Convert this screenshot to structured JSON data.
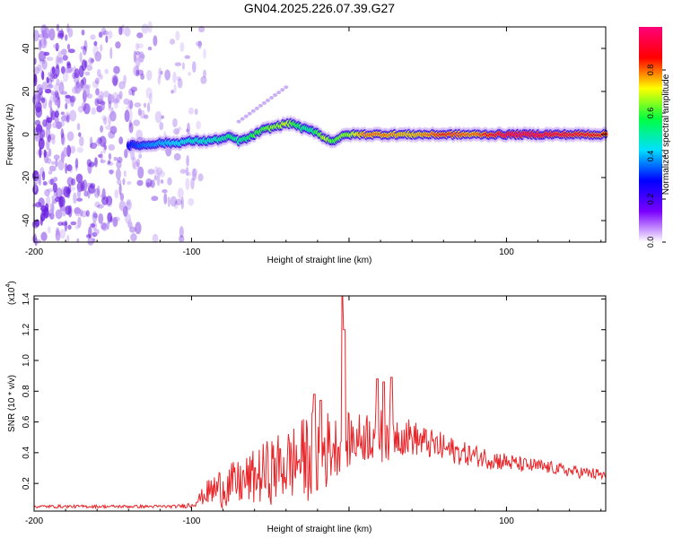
{
  "title": "GN04.2025.226.07.39.G27",
  "colors": {
    "snr_line": "#e8262a",
    "spectro_base": "#6a1fe0"
  },
  "chart_data": [
    {
      "type": "heatmap",
      "xlabel": "Height of straight line (km)",
      "ylabel": "Frequency (Hz)",
      "xlim": [
        -200,
        163
      ],
      "ylim": [
        -50,
        50
      ],
      "x_ticks": [
        -200,
        -100,
        0,
        100
      ],
      "x_tick_labels": [
        "-200",
        "-100",
        "",
        "100"
      ],
      "y_ticks": [
        -40,
        -20,
        0,
        20,
        40
      ],
      "y_tick_labels": [
        "-40",
        "-20",
        "0",
        "20",
        "40"
      ],
      "colorbar": {
        "label": "Normalized spectral amplitude",
        "range": [
          0,
          1
        ],
        "ticks": [
          0,
          0.2,
          0.4,
          0.6,
          0.8
        ],
        "tick_labels": [
          "0.0",
          "0.2",
          "0.4",
          "0.6",
          "0.8"
        ],
        "colormap": [
          "#ffffff",
          "#7a00ff",
          "#0000ff",
          "#00e0ff",
          "#00ff40",
          "#ffff00",
          "#ff0000",
          "#ff007a"
        ]
      },
      "ridge": {
        "x": [
          -140,
          -130,
          -120,
          -110,
          -100,
          -90,
          -80,
          -75,
          -70,
          -65,
          -60,
          -55,
          -50,
          -45,
          -40,
          -35,
          -30,
          -25,
          -20,
          -15,
          -10,
          -5,
          0,
          10,
          20,
          40,
          60,
          80,
          100,
          120,
          140,
          163
        ],
        "freq": [
          -5,
          -5,
          -4,
          -4,
          -3,
          -3,
          -2,
          -1,
          -3,
          -2,
          0,
          2,
          3,
          4,
          5,
          5,
          3,
          2,
          1,
          -2,
          -3,
          -1,
          0,
          0,
          0,
          0,
          0,
          0,
          0,
          0,
          0,
          0
        ],
        "amplitude": [
          0.2,
          0.3,
          0.35,
          0.4,
          0.45,
          0.45,
          0.5,
          0.55,
          0.5,
          0.55,
          0.6,
          0.6,
          0.65,
          0.65,
          0.7,
          0.6,
          0.55,
          0.5,
          0.6,
          0.7,
          0.6,
          0.65,
          0.65,
          0.8,
          0.8,
          0.75,
          0.85,
          0.8,
          0.95,
          0.95,
          0.9,
          0.85
        ]
      },
      "faint_track": {
        "x": [
          -70,
          -40
        ],
        "freq": [
          6,
          22
        ]
      },
      "noise_region_x": [
        -200,
        -110
      ]
    },
    {
      "type": "line",
      "xlabel": "Height of straight line (km)",
      "ylabel": "SNR (10 * v/v)",
      "y_multiplier": "(x10",
      "y_multiplier_exp": "4",
      "y_multiplier_close": ")",
      "xlim": [
        -200,
        163
      ],
      "ylim": [
        0.02,
        1.42
      ],
      "x_ticks": [
        -200,
        -100,
        0,
        100
      ],
      "x_tick_labels": [
        "-200",
        "-100",
        "",
        "100"
      ],
      "y_ticks": [
        0.2,
        0.4,
        0.6,
        0.8,
        1.0,
        1.2,
        1.4
      ],
      "y_tick_labels": [
        "0.2",
        "0.4",
        "0.6",
        "0.8",
        "1.0",
        "1.2",
        "1.4"
      ],
      "envelope": {
        "x": [
          -200,
          -150,
          -110,
          -100,
          -95,
          -90,
          -85,
          -80,
          -70,
          -60,
          -50,
          -40,
          -30,
          -25,
          -20,
          -15,
          -10,
          -5,
          0,
          10,
          15,
          20,
          25,
          30,
          40,
          50,
          60,
          70,
          80,
          90,
          100,
          110,
          120,
          130,
          140,
          150,
          163
        ],
        "center": [
          0.05,
          0.05,
          0.05,
          0.06,
          0.1,
          0.14,
          0.16,
          0.18,
          0.2,
          0.24,
          0.28,
          0.32,
          0.36,
          0.38,
          0.4,
          0.42,
          0.44,
          0.46,
          0.48,
          0.5,
          0.55,
          0.58,
          0.55,
          0.52,
          0.5,
          0.46,
          0.43,
          0.4,
          0.38,
          0.36,
          0.34,
          0.32,
          0.31,
          0.3,
          0.28,
          0.27,
          0.25
        ],
        "amplitude": [
          0.01,
          0.01,
          0.01,
          0.02,
          0.04,
          0.08,
          0.12,
          0.14,
          0.15,
          0.18,
          0.22,
          0.24,
          0.26,
          0.3,
          0.32,
          0.28,
          0.2,
          0.2,
          0.18,
          0.16,
          0.22,
          0.26,
          0.2,
          0.14,
          0.12,
          0.1,
          0.1,
          0.08,
          0.07,
          0.07,
          0.06,
          0.05,
          0.05,
          0.04,
          0.04,
          0.04,
          0.04
        ]
      },
      "spikes": [
        {
          "x": -4,
          "y": 1.42
        },
        {
          "x": -3,
          "y": 1.2
        },
        {
          "x": 18,
          "y": 0.88
        },
        {
          "x": 22,
          "y": 0.86
        },
        {
          "x": 27,
          "y": 0.89
        },
        {
          "x": -22,
          "y": 0.78
        },
        {
          "x": -18,
          "y": 0.74
        }
      ]
    }
  ]
}
